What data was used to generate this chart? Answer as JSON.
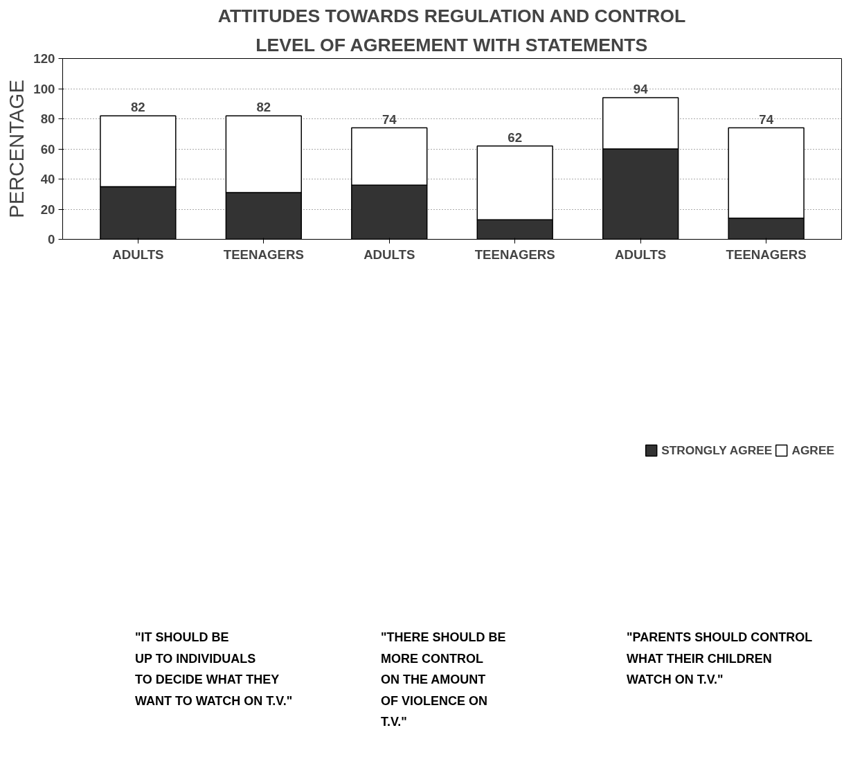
{
  "chart_data": {
    "type": "bar",
    "stacked": true,
    "title": "ATTITUDES TOWARDS REGULATION AND CONTROL",
    "subtitle": "LEVEL OF AGREEMENT WITH STATEMENTS",
    "ylabel": "PERCENTAGE",
    "categories": [
      "ADULTS",
      "TEENAGERS",
      "ADULTS",
      "TEENAGERS",
      "ADULTS",
      "TEENAGERS"
    ],
    "series": [
      {
        "name": "STRONGLY AGREE",
        "color": "#333333",
        "values": [
          35,
          31,
          36,
          13,
          60,
          14
        ]
      },
      {
        "name": "AGREE",
        "color": "#ffffff",
        "values": [
          47,
          51,
          38,
          49,
          34,
          60
        ]
      }
    ],
    "totals": [
      "82",
      "82",
      "74",
      "62",
      "94",
      "74"
    ],
    "ylim": [
      0,
      120
    ],
    "yticks": [
      0,
      20,
      40,
      60,
      80,
      100,
      120
    ],
    "grid": "y",
    "legend": "bottom",
    "annotations": [
      "\"IT SHOULD BE\nUP TO INDIVIDUALS\nTO DECIDE WHAT THEY\nWANT TO WATCH ON T.V.\"",
      "\"THERE SHOULD BE\nMORE CONTROL\nON THE AMOUNT\nOF VIOLENCE ON\nT.V.\"",
      "\"PARENTS SHOULD CONTROL\nWHAT THEIR CHILDREN\nWATCH ON T.V.\""
    ]
  }
}
